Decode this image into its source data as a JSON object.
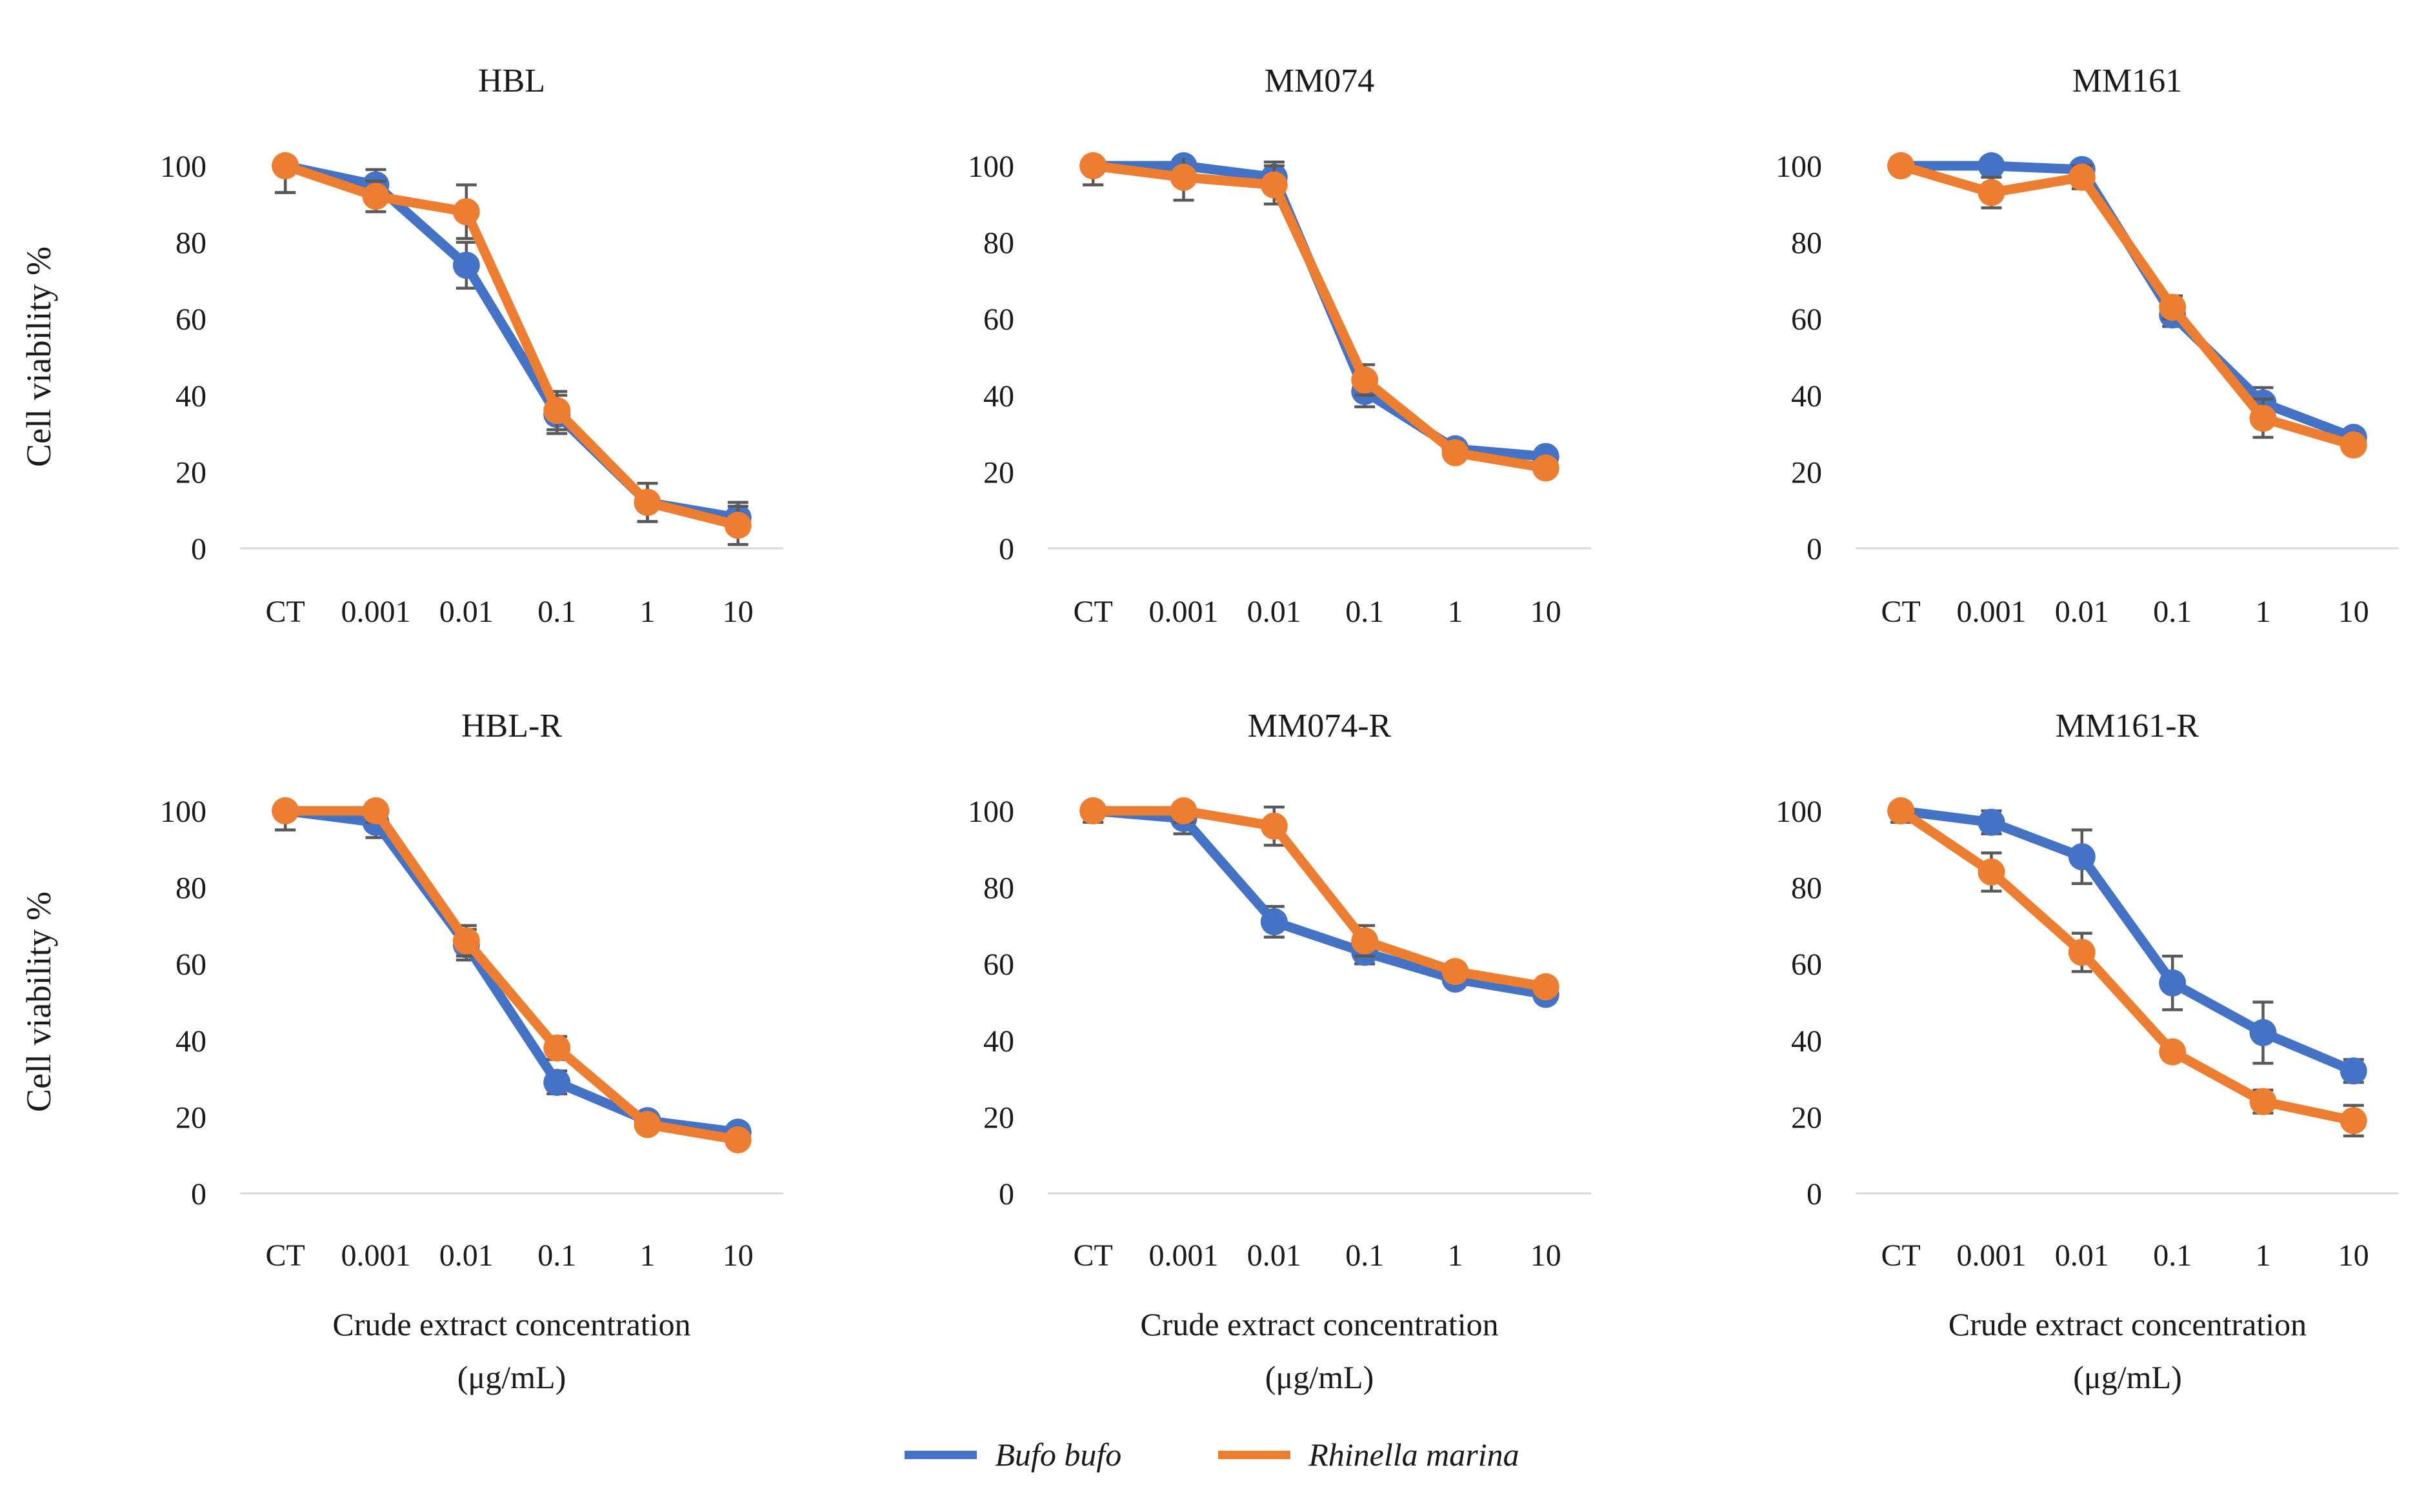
{
  "figure": {
    "ylabel": "Cell viability %",
    "xlabel_line1": "Crude extract concentration",
    "xlabel_line2": "(μg/mL)"
  },
  "chart_data": {
    "type": "line",
    "categories": [
      "CT",
      "0.001",
      "0.01",
      "0.1",
      "1",
      "10"
    ],
    "ylabel": "Cell viability %",
    "xlabel_line1": "Crude extract concentration",
    "xlabel_line2": "(μg/mL)",
    "ylim": [
      0,
      100
    ],
    "yticks": [
      0,
      20,
      40,
      60,
      80,
      100
    ],
    "grid": false,
    "legend_position": "bottom-center",
    "error_bar_color": "#595959",
    "axis_line_color": "#d9d9d9",
    "charts": [
      {
        "title": "HBL",
        "series": [
          {
            "name": "Bufo bufo",
            "color": "#4472C4",
            "values": [
              100,
              95,
              74,
              35,
              12,
              8
            ],
            "errors": [
              7,
              4,
              6,
              5,
              5,
              4
            ]
          },
          {
            "name": "Rhinella marina",
            "color": "#ED7D31",
            "values": [
              100,
              92,
              88,
              36,
              12,
              6
            ],
            "errors": [
              7,
              4,
              7,
              5,
              5,
              5
            ]
          }
        ]
      },
      {
        "title": "MM074",
        "series": [
          {
            "name": "Bufo bufo",
            "color": "#4472C4",
            "values": [
              100,
              100,
              97,
              41,
              26,
              24
            ],
            "errors": [
              5,
              3,
              4,
              4,
              2,
              2
            ]
          },
          {
            "name": "Rhinella marina",
            "color": "#ED7D31",
            "values": [
              100,
              97,
              95,
              44,
              25,
              21
            ],
            "errors": [
              5,
              6,
              5,
              4,
              2,
              2
            ]
          }
        ]
      },
      {
        "title": "MM161",
        "series": [
          {
            "name": "Bufo bufo",
            "color": "#4472C4",
            "values": [
              100,
              100,
              99,
              61,
              38,
              29
            ],
            "errors": [
              2,
              2,
              2,
              3,
              4,
              2
            ]
          },
          {
            "name": "Rhinella marina",
            "color": "#ED7D31",
            "values": [
              100,
              93,
              97,
              63,
              34,
              27
            ],
            "errors": [
              2,
              4,
              3,
              3,
              5,
              2
            ]
          }
        ]
      },
      {
        "title": "HBL-R",
        "series": [
          {
            "name": "Bufo bufo",
            "color": "#4472C4",
            "values": [
              100,
              97,
              65,
              29,
              19,
              16
            ],
            "errors": [
              5,
              4,
              4,
              3,
              2,
              2
            ]
          },
          {
            "name": "Rhinella marina",
            "color": "#ED7D31",
            "values": [
              100,
              100,
              66,
              38,
              18,
              14
            ],
            "errors": [
              5,
              3,
              4,
              3,
              2,
              2
            ]
          }
        ]
      },
      {
        "title": "MM074-R",
        "series": [
          {
            "name": "Bufo bufo",
            "color": "#4472C4",
            "values": [
              100,
              98,
              71,
              63,
              56,
              52
            ],
            "errors": [
              3,
              4,
              4,
              3,
              2,
              2
            ]
          },
          {
            "name": "Rhinella marina",
            "color": "#ED7D31",
            "values": [
              100,
              100,
              96,
              66,
              58,
              54
            ],
            "errors": [
              3,
              3,
              5,
              4,
              2,
              2
            ]
          }
        ]
      },
      {
        "title": "MM161-R",
        "series": [
          {
            "name": "Bufo bufo",
            "color": "#4472C4",
            "values": [
              100,
              97,
              88,
              55,
              42,
              32
            ],
            "errors": [
              3,
              3,
              7,
              7,
              8,
              3
            ]
          },
          {
            "name": "Rhinella marina",
            "color": "#ED7D31",
            "values": [
              100,
              84,
              63,
              37,
              24,
              19
            ],
            "errors": [
              3,
              5,
              5,
              2,
              3,
              4
            ]
          }
        ]
      }
    ]
  },
  "legend": {
    "items": [
      {
        "label": "Bufo bufo",
        "color": "#4472C4"
      },
      {
        "label": "Rhinella marina",
        "color": "#ED7D31"
      }
    ]
  }
}
